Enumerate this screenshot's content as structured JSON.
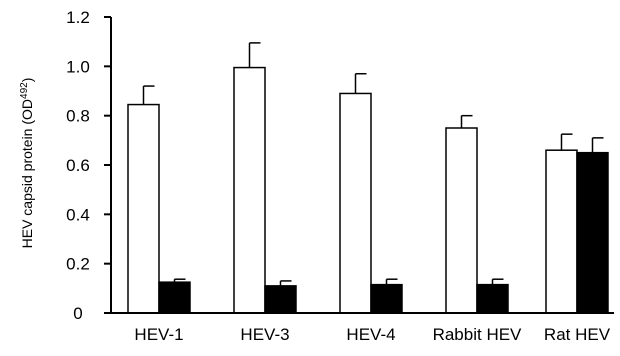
{
  "chart_data": {
    "type": "bar",
    "title": "",
    "xlabel": "",
    "ylabel": "HEV capsid protein (OD",
    "ylabel_subscript": "492",
    "ylabel_suffix": ")",
    "ylim": [
      0,
      1.2
    ],
    "yticks": [
      "0",
      "0.2",
      "0.4",
      "0.6",
      "0.8",
      "1.0",
      "1.2"
    ],
    "categories": [
      "HEV-1",
      "HEV-3",
      "HEV-4",
      "Rabbit HEV",
      "Rat HEV"
    ],
    "series": [
      {
        "color": "#ffffff",
        "values": [
          0.845,
          0.995,
          0.89,
          0.75,
          0.66
        ],
        "errors": [
          0.075,
          0.1,
          0.08,
          0.05,
          0.065
        ]
      },
      {
        "color": "#000000",
        "values": [
          0.125,
          0.11,
          0.115,
          0.115,
          0.65
        ],
        "errors": [
          0.012,
          0.02,
          0.022,
          0.022,
          0.06
        ]
      }
    ],
    "grid": false,
    "legend": "none"
  }
}
